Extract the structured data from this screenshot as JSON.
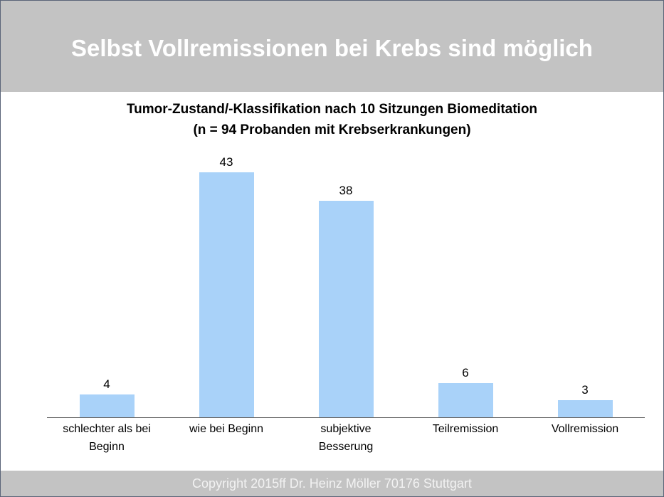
{
  "header": {
    "title": "Selbst Vollremissionen bei Krebs sind möglich"
  },
  "chart_data": {
    "type": "bar",
    "title": "Tumor-Zustand/-Klassifikation nach 10 Sitzungen Biomeditation",
    "subtitle": "(n = 94 Probanden mit Krebserkrankungen)",
    "categories": [
      "schlechter als bei Beginn",
      "wie bei Beginn",
      "subjektive Besserung",
      "Teilremission",
      "Vollremission"
    ],
    "values": [
      4,
      43,
      38,
      6,
      3
    ],
    "color": "#a9d2f9"
  },
  "footer": {
    "text": "Copyright 2015ff Dr. Heinz Möller 70176 Stuttgart"
  }
}
